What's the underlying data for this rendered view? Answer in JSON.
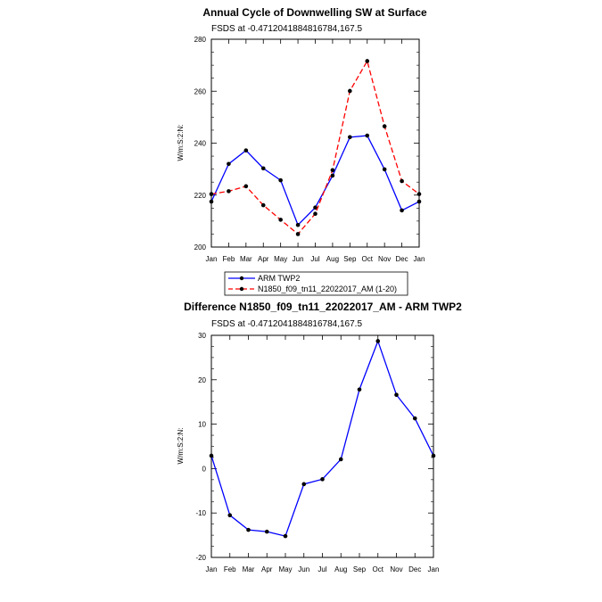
{
  "chart_data": [
    {
      "type": "line",
      "title": "Annual Cycle of Downwelling SW at Surface",
      "subtitle": "FSDS at -0.4712041884816784,167.5",
      "xlabel": "",
      "ylabel": "W/m:S:2:N:",
      "categories": [
        "Jan",
        "Feb",
        "Mar",
        "Apr",
        "May",
        "Jun",
        "Jul",
        "Aug",
        "Sep",
        "Oct",
        "Nov",
        "Dec",
        "Jan"
      ],
      "ylim": [
        200,
        280
      ],
      "yticks": [
        200,
        220,
        240,
        260,
        280
      ],
      "series": [
        {
          "name": "ARM TWP2",
          "color": "#0000ff",
          "dash": "solid",
          "values": [
            217.5,
            232,
            237.2,
            230.3,
            225.7,
            208.5,
            215.2,
            227.5,
            242.3,
            242.9,
            229.9,
            214.1,
            217.5
          ]
        },
        {
          "name": "N1850_f09_tn11_22022017_AM (1-20)",
          "color": "#ff0000",
          "dash": "dashed",
          "values": [
            220.4,
            221.5,
            223.4,
            216.1,
            210.5,
            205,
            212.8,
            229.6,
            260.1,
            271.6,
            246.5,
            225.4,
            220.4
          ]
        }
      ],
      "legend": "below"
    },
    {
      "type": "line",
      "title": "Difference N1850_f09_tn11_22022017_AM - ARM TWP2",
      "subtitle": "FSDS at -0.4712041884816784,167.5",
      "xlabel": "",
      "ylabel": "W/m:S:2:N:",
      "categories": [
        "Jan",
        "Feb",
        "Mar",
        "Apr",
        "May",
        "Jun",
        "Jul",
        "Aug",
        "Sep",
        "Oct",
        "Nov",
        "Dec",
        "Jan"
      ],
      "ylim": [
        -20,
        30
      ],
      "yticks": [
        -20,
        -10,
        0,
        10,
        20,
        30
      ],
      "series": [
        {
          "name": "Difference",
          "color": "#0000ff",
          "dash": "solid",
          "values": [
            2.9,
            -10.5,
            -13.8,
            -14.2,
            -15.2,
            -3.5,
            -2.4,
            2.1,
            17.8,
            28.7,
            16.6,
            11.3,
            2.9
          ]
        }
      ]
    }
  ]
}
